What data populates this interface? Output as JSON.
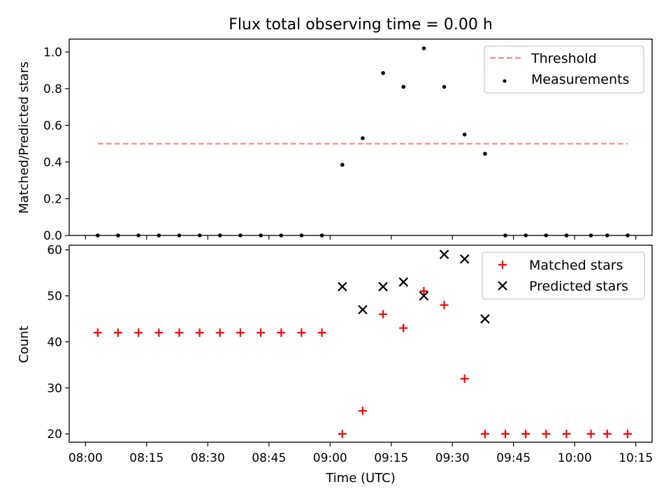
{
  "title": "Flux total observing time = 0.00 h",
  "chart_data": [
    {
      "type": "scatter",
      "ylabel": "Matched/Predicted stars",
      "ylim": [
        0,
        1.07
      ],
      "yticks": [
        0.0,
        0.2,
        0.4,
        0.6,
        0.8,
        1.0
      ],
      "ytick_labels": [
        "0.0",
        "0.2",
        "0.4",
        "0.6",
        "0.8",
        "1.0"
      ],
      "legend_position": "top-right",
      "threshold": {
        "name": "Threshold",
        "y": 0.5,
        "x_start": "08:03",
        "x_end": "10:13",
        "color": "#ff7f7f",
        "style": "dashed"
      },
      "series": [
        {
          "name": "Measurements",
          "marker": "dot",
          "color": "#000000",
          "x": [
            "08:03",
            "08:08",
            "08:13",
            "08:18",
            "08:23",
            "08:28",
            "08:33",
            "08:38",
            "08:43",
            "08:48",
            "08:53",
            "08:58",
            "09:03",
            "09:08",
            "09:13",
            "09:18",
            "09:23",
            "09:28",
            "09:33",
            "09:38",
            "09:43",
            "09:48",
            "09:53",
            "09:58",
            "10:04",
            "10:08",
            "10:13"
          ],
          "y": [
            0,
            0,
            0,
            0,
            0,
            0,
            0,
            0,
            0,
            0,
            0,
            0,
            0.385,
            0.53,
            0.885,
            0.81,
            1.02,
            0.81,
            0.55,
            0.445,
            0,
            0,
            0,
            0,
            0,
            0,
            0
          ]
        }
      ]
    },
    {
      "type": "scatter",
      "ylabel": "Count",
      "xlabel": "Time (UTC)",
      "ylim": [
        18.2,
        61
      ],
      "yticks": [
        20,
        30,
        40,
        50,
        60
      ],
      "ytick_labels": [
        "20",
        "30",
        "40",
        "50",
        "60"
      ],
      "xticks": [
        "08:00",
        "08:15",
        "08:30",
        "08:45",
        "09:00",
        "09:15",
        "09:30",
        "09:45",
        "10:00",
        "10:15"
      ],
      "legend_position": "top-right",
      "series": [
        {
          "name": "Matched stars",
          "marker": "plus",
          "color": "#ff0000",
          "x": [
            "08:03",
            "08:08",
            "08:13",
            "08:18",
            "08:23",
            "08:28",
            "08:33",
            "08:38",
            "08:43",
            "08:48",
            "08:53",
            "08:58",
            "09:03",
            "09:08",
            "09:13",
            "09:18",
            "09:23",
            "09:28",
            "09:33",
            "09:38",
            "09:43",
            "09:48",
            "09:53",
            "09:58",
            "10:04",
            "10:08",
            "10:13"
          ],
          "y": [
            42,
            42,
            42,
            42,
            42,
            42,
            42,
            42,
            42,
            42,
            42,
            42,
            20,
            25,
            46,
            43,
            51,
            48,
            32,
            20,
            20,
            20,
            20,
            20,
            20,
            20,
            20
          ]
        },
        {
          "name": "Predicted stars",
          "marker": "x",
          "color": "#000000",
          "x": [
            "09:03",
            "09:08",
            "09:13",
            "09:18",
            "09:23",
            "09:28",
            "09:33",
            "09:38"
          ],
          "y": [
            52,
            47,
            52,
            53,
            50,
            59,
            58,
            45
          ]
        }
      ]
    }
  ]
}
